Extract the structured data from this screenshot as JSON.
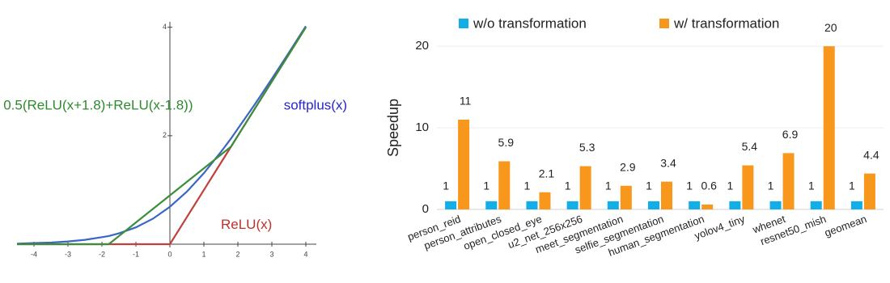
{
  "chart_data": [
    {
      "type": "line",
      "x": [
        -4.5,
        -4,
        -3.5,
        -3,
        -2.5,
        -2,
        -1.8,
        -1.5,
        -1,
        -0.5,
        0,
        0.5,
        1,
        1.5,
        1.8,
        2,
        2.5,
        3,
        3.5,
        4
      ],
      "series": [
        {
          "name": "softplus(x)",
          "color": "#3a66c4",
          "values": [
            0.01,
            0.02,
            0.03,
            0.05,
            0.08,
            0.13,
            0.15,
            0.2,
            0.31,
            0.47,
            0.69,
            0.97,
            1.31,
            1.7,
            1.95,
            2.13,
            2.58,
            3.05,
            3.53,
            4.02
          ]
        },
        {
          "name": "ReLU(x)",
          "color": "#c0413b",
          "values": [
            0,
            0,
            0,
            0,
            0,
            0,
            0,
            0,
            0,
            0,
            0,
            0.5,
            1,
            1.5,
            1.8,
            2,
            2.5,
            3,
            3.5,
            4
          ]
        },
        {
          "name": "0.5(ReLU(x+1.8)+ReLU(x-1.8))",
          "color": "#3c8d3c",
          "values": [
            0,
            0,
            0,
            0,
            0,
            0,
            0,
            0.15,
            0.4,
            0.65,
            0.9,
            1.15,
            1.4,
            1.65,
            1.8,
            2,
            2.5,
            3,
            3.5,
            4
          ]
        }
      ],
      "annotations": [
        {
          "text": "0.5(ReLU(x+1.8)+ReLU(x-1.8))",
          "color": "#2e8b2e",
          "x": -4.9,
          "y": 2.55
        },
        {
          "text": "softplus(x)",
          "color": "#2626cc",
          "x": 3.35,
          "y": 2.55
        },
        {
          "text": "ReLU(x)",
          "color": "#c0302b",
          "x": 1.5,
          "y": 0.35
        }
      ],
      "xlim": [
        -4.5,
        4.5
      ],
      "ylim": [
        0,
        4.1
      ],
      "xticks": [
        -4,
        -3,
        -2,
        -1,
        0,
        1,
        2,
        3,
        4
      ],
      "yticks": [
        2,
        4
      ]
    },
    {
      "type": "bar",
      "categories": [
        "person_reid",
        "person_attributes",
        "open_closed_eye",
        "u2_net_256x256",
        "meet_segmentation",
        "selfie_segmentation",
        "human_segmentation",
        "yolov4_tiny",
        "whenet",
        "resnet50_mish",
        "geomean"
      ],
      "series": [
        {
          "name": "w/o transformation",
          "color": "#12aee8",
          "values": [
            1,
            1,
            1,
            1,
            1,
            1,
            1,
            1,
            1,
            1,
            1
          ]
        },
        {
          "name": "w/ transformation",
          "color": "#f7981d",
          "values": [
            11,
            5.9,
            2.1,
            5.3,
            2.9,
            3.4,
            0.6,
            5.4,
            6.9,
            20,
            4.4
          ]
        }
      ],
      "y_label": "Speedup",
      "ylim": [
        0,
        22
      ],
      "yticks": [
        0,
        10,
        20
      ],
      "grid": true,
      "legend": "top"
    }
  ]
}
